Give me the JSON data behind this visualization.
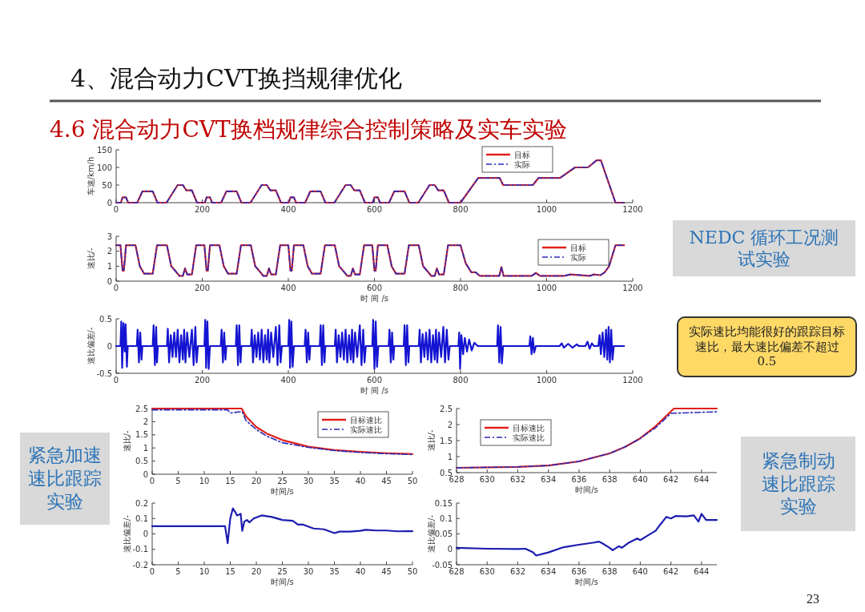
{
  "chart_data": [
    {
      "type": "other",
      "title": "4、混合动力CVT换挡规律优化",
      "subtitle": "4.6 混合动力CVT换档规律综合控制策略及实车实验",
      "annotations": [
        "NEDC 循环工况测试实验",
        "实际速比均能很好的跟踪目标速比，最大速比偏差不超过 0.5",
        "紧急加速速比跟踪实验",
        "紧急制动速比跟踪实验",
        "23"
      ]
    },
    {
      "type": "line",
      "ylabel": "车速/km/h",
      "xlim": [
        0,
        1200
      ],
      "xticks": [
        0,
        200,
        400,
        600,
        800,
        1000,
        1200
      ],
      "ylim": [
        0,
        150
      ],
      "yticks": [
        0,
        50,
        100,
        150
      ],
      "legend": "top right",
      "series": [
        {
          "name": "目标",
          "color": "#e0201c",
          "line_style": "solid",
          "x": [
            0,
            11,
            15,
            23,
            28,
            49,
            61,
            85,
            96,
            117,
            143,
            155,
            163,
            176,
            188,
            195,
            206,
            210,
            218,
            223,
            244,
            256,
            280,
            291,
            312,
            338,
            350,
            358,
            371,
            383,
            390,
            401,
            405,
            413,
            418,
            439,
            451,
            475,
            486,
            507,
            533,
            545,
            553,
            566,
            578,
            585,
            596,
            600,
            608,
            613,
            634,
            646,
            670,
            681,
            702,
            728,
            740,
            748,
            761,
            773,
            800,
            841,
            891,
            899,
            968,
            981,
            1031,
            1066,
            1096,
            1116,
            1126,
            1160,
            1180
          ],
          "values": [
            0,
            0,
            15,
            15,
            0,
            0,
            32,
            32,
            0,
            0,
            50,
            50,
            35,
            35,
            0,
            0,
            0,
            15,
            15,
            0,
            0,
            32,
            32,
            0,
            0,
            50,
            50,
            35,
            35,
            0,
            0,
            0,
            15,
            15,
            0,
            0,
            32,
            32,
            0,
            0,
            50,
            50,
            35,
            35,
            0,
            0,
            0,
            15,
            15,
            0,
            0,
            32,
            32,
            0,
            0,
            50,
            50,
            35,
            35,
            0,
            0,
            70,
            70,
            50,
            50,
            70,
            70,
            100,
            100,
            120,
            120,
            0,
            0
          ]
        },
        {
          "name": "实际",
          "color": "#2a2ab8",
          "line_style": "dashed",
          "x": [
            0,
            11,
            15,
            23,
            28,
            49,
            61,
            85,
            96,
            117,
            143,
            155,
            163,
            176,
            188,
            195,
            206,
            210,
            218,
            223,
            244,
            256,
            280,
            291,
            312,
            338,
            350,
            358,
            371,
            383,
            390,
            401,
            405,
            413,
            418,
            439,
            451,
            475,
            486,
            507,
            533,
            545,
            553,
            566,
            578,
            585,
            596,
            600,
            608,
            613,
            634,
            646,
            670,
            681,
            702,
            728,
            740,
            748,
            761,
            773,
            800,
            841,
            891,
            899,
            968,
            981,
            1031,
            1066,
            1096,
            1116,
            1126,
            1160,
            1180
          ],
          "values": [
            0,
            0,
            15,
            15,
            0,
            0,
            32,
            32,
            0,
            0,
            50,
            50,
            35,
            35,
            0,
            0,
            0,
            15,
            15,
            0,
            0,
            32,
            32,
            0,
            0,
            50,
            50,
            35,
            35,
            0,
            0,
            0,
            15,
            15,
            0,
            0,
            32,
            32,
            0,
            0,
            50,
            50,
            35,
            35,
            0,
            0,
            0,
            15,
            15,
            0,
            0,
            32,
            32,
            0,
            0,
            50,
            50,
            35,
            35,
            0,
            0,
            70,
            70,
            50,
            50,
            70,
            70,
            100,
            100,
            120,
            120,
            0,
            0
          ]
        }
      ]
    },
    {
      "type": "line",
      "xlabel": "时 间 /s",
      "ylabel": "速比/-",
      "xlim": [
        0,
        1200
      ],
      "xticks": [
        0,
        200,
        400,
        600,
        800,
        1000,
        1200
      ],
      "ylim": [
        0,
        3
      ],
      "yticks": [
        0,
        1,
        2,
        3
      ],
      "legend": "top right",
      "series": [
        {
          "name": "目标",
          "color": "#e0201c",
          "line_style": "solid",
          "x": [
            0,
            10,
            15,
            18,
            23,
            45,
            55,
            65,
            85,
            95,
            118,
            128,
            140,
            147,
            155,
            160,
            165,
            176,
            186,
            205,
            210,
            213,
            218,
            240,
            250,
            260,
            280,
            290,
            313,
            323,
            335,
            342,
            350,
            355,
            360,
            371,
            381,
            400,
            405,
            408,
            413,
            435,
            445,
            455,
            475,
            485,
            508,
            518,
            530,
            537,
            545,
            550,
            555,
            566,
            576,
            595,
            600,
            603,
            608,
            630,
            640,
            650,
            670,
            680,
            703,
            713,
            725,
            732,
            740,
            745,
            750,
            761,
            771,
            800,
            812,
            825,
            835,
            845,
            890,
            895,
            900,
            965,
            975,
            985,
            1040,
            1055,
            1080,
            1100,
            1110,
            1125,
            1135,
            1145,
            1160,
            1180
          ],
          "values": [
            2.4,
            2.4,
            0.7,
            0.7,
            2.4,
            2.4,
            1.0,
            0.5,
            0.5,
            2.4,
            2.4,
            1.0,
            0.6,
            0.35,
            0.35,
            0.85,
            0.45,
            0.45,
            2.4,
            2.4,
            0.7,
            0.7,
            2.4,
            2.4,
            1.0,
            0.5,
            0.5,
            2.4,
            2.4,
            1.0,
            0.6,
            0.35,
            0.35,
            0.85,
            0.45,
            0.45,
            2.4,
            2.4,
            0.7,
            0.7,
            2.4,
            2.4,
            1.0,
            0.5,
            0.5,
            2.4,
            2.4,
            1.0,
            0.6,
            0.35,
            0.35,
            0.85,
            0.45,
            0.45,
            2.4,
            2.4,
            0.7,
            0.7,
            2.4,
            2.4,
            1.0,
            0.5,
            0.5,
            2.4,
            2.4,
            1.0,
            0.6,
            0.35,
            0.35,
            0.85,
            0.45,
            0.45,
            2.4,
            2.4,
            1.2,
            0.6,
            0.6,
            0.35,
            0.35,
            0.95,
            0.35,
            0.35,
            0.55,
            0.35,
            0.35,
            0.45,
            0.4,
            0.35,
            0.45,
            0.4,
            0.6,
            1.0,
            2.4,
            2.4
          ]
        },
        {
          "name": "实际",
          "color": "#2a2ab8",
          "line_style": "dashed",
          "x": [
            0,
            10,
            15,
            18,
            23,
            45,
            55,
            65,
            85,
            95,
            118,
            128,
            140,
            147,
            155,
            160,
            165,
            176,
            186,
            205,
            210,
            213,
            218,
            240,
            250,
            260,
            280,
            290,
            313,
            323,
            335,
            342,
            350,
            355,
            360,
            371,
            381,
            400,
            405,
            408,
            413,
            435,
            445,
            455,
            475,
            485,
            508,
            518,
            530,
            537,
            545,
            550,
            555,
            566,
            576,
            595,
            600,
            603,
            608,
            630,
            640,
            650,
            670,
            680,
            703,
            713,
            725,
            732,
            740,
            745,
            750,
            761,
            771,
            800,
            812,
            825,
            835,
            845,
            890,
            895,
            900,
            965,
            975,
            985,
            1040,
            1055,
            1080,
            1100,
            1110,
            1125,
            1135,
            1145,
            1160,
            1180
          ],
          "values": [
            2.4,
            2.4,
            0.7,
            0.7,
            2.4,
            2.4,
            1.0,
            0.5,
            0.5,
            2.4,
            2.4,
            1.0,
            0.6,
            0.35,
            0.35,
            0.85,
            0.45,
            0.45,
            2.4,
            2.4,
            0.7,
            0.7,
            2.4,
            2.4,
            1.0,
            0.5,
            0.5,
            2.4,
            2.4,
            1.0,
            0.6,
            0.35,
            0.35,
            0.85,
            0.45,
            0.45,
            2.4,
            2.4,
            0.7,
            0.7,
            2.4,
            2.4,
            1.0,
            0.5,
            0.5,
            2.4,
            2.4,
            1.0,
            0.6,
            0.35,
            0.35,
            0.85,
            0.45,
            0.45,
            2.4,
            2.4,
            0.7,
            0.7,
            2.4,
            2.4,
            1.0,
            0.5,
            0.5,
            2.4,
            2.4,
            1.0,
            0.6,
            0.35,
            0.35,
            0.85,
            0.45,
            0.45,
            2.4,
            2.4,
            1.2,
            0.6,
            0.6,
            0.35,
            0.35,
            0.95,
            0.35,
            0.35,
            0.55,
            0.35,
            0.35,
            0.45,
            0.4,
            0.35,
            0.45,
            0.4,
            0.6,
            1.0,
            2.4,
            2.4
          ]
        }
      ]
    },
    {
      "type": "line",
      "xlabel": "时 间 /s",
      "ylabel": "速比偏差/-",
      "xlim": [
        0,
        1200
      ],
      "xticks": [
        0,
        200,
        400,
        600,
        800,
        1000,
        1200
      ],
      "ylim": [
        -0.5,
        0.5
      ],
      "yticks": [
        -0.5,
        0,
        0.5
      ],
      "series": [
        {
          "color": "#1414d2",
          "line_style": "solid",
          "x": [
            0,
            10,
            12,
            14,
            17,
            20,
            22,
            25,
            27,
            48,
            50,
            53,
            56,
            59,
            61,
            85,
            87,
            90,
            93,
            95,
            97,
            118,
            120,
            123,
            127,
            131,
            135,
            139,
            143,
            147,
            151,
            155,
            158,
            161,
            165,
            170,
            176,
            180,
            184,
            187,
            190,
            205,
            207,
            209,
            212,
            215,
            218,
            243,
            245,
            248,
            251,
            254,
            256,
            278,
            280,
            283,
            286,
            289,
            291,
            313,
            315,
            318,
            322,
            326,
            330,
            334,
            338,
            342,
            346,
            350,
            353,
            356,
            360,
            365,
            371,
            375,
            379,
            382,
            385,
            400,
            402,
            404,
            407,
            410,
            413,
            438,
            440,
            443,
            446,
            449,
            451,
            473,
            475,
            478,
            481,
            484,
            486,
            508,
            510,
            513,
            517,
            521,
            525,
            529,
            533,
            537,
            541,
            545,
            548,
            551,
            555,
            560,
            566,
            570,
            574,
            577,
            580,
            595,
            597,
            600,
            603,
            606,
            609,
            633,
            635,
            638,
            641,
            644,
            646,
            668,
            670,
            673,
            676,
            679,
            681,
            703,
            705,
            708,
            712,
            716,
            720,
            724,
            728,
            732,
            736,
            740,
            743,
            746,
            750,
            755,
            760,
            764,
            768,
            772,
            775,
            795,
            797,
            799,
            802,
            806,
            810,
            815,
            820,
            826,
            832,
            840,
            885,
            887,
            890,
            893,
            896,
            899,
            960,
            962,
            965,
            968,
            971,
            975,
            1030,
            1035,
            1040,
            1050,
            1060,
            1070,
            1075,
            1090,
            1095,
            1100,
            1105,
            1110,
            1120,
            1123,
            1126,
            1130,
            1134,
            1138,
            1141,
            1144,
            1147,
            1150,
            1153,
            1156,
            1180
          ],
          "values": [
            0,
            0,
            0.45,
            -0.4,
            0.42,
            -0.1,
            0.4,
            -0.38,
            0,
            0,
            0.3,
            -0.3,
            0.25,
            -0.25,
            0,
            0,
            0.38,
            -0.35,
            0.35,
            -0.3,
            0,
            0,
            0.32,
            -0.3,
            0.2,
            -0.2,
            0.25,
            -0.2,
            0.3,
            -0.3,
            0.2,
            -0.25,
            0.3,
            -0.3,
            0.25,
            -0.2,
            0.3,
            -0.35,
            0.35,
            -0.3,
            0,
            0,
            0.48,
            -0.4,
            0.45,
            -0.42,
            0,
            0,
            0.3,
            -0.3,
            0.25,
            -0.25,
            0,
            0,
            0.38,
            -0.35,
            0.38,
            -0.3,
            0,
            0,
            0.3,
            -0.3,
            0.2,
            -0.2,
            0.25,
            -0.25,
            0.3,
            -0.3,
            0.2,
            -0.25,
            0.3,
            -0.3,
            0.25,
            -0.2,
            0.35,
            -0.35,
            0.38,
            -0.3,
            0,
            0,
            0.48,
            -0.4,
            0.45,
            -0.38,
            0,
            0,
            0.3,
            -0.3,
            0.25,
            -0.25,
            0,
            0,
            0.38,
            -0.35,
            0.38,
            -0.3,
            0,
            0,
            0.3,
            -0.3,
            0.2,
            -0.2,
            0.25,
            -0.25,
            0.3,
            -0.3,
            0.2,
            -0.25,
            0.3,
            -0.3,
            0.25,
            -0.2,
            0.38,
            -0.35,
            0.3,
            -0.3,
            0,
            0,
            0.48,
            -0.42,
            0.45,
            -0.38,
            0,
            0,
            0.3,
            -0.3,
            0.25,
            -0.25,
            0,
            0,
            0.38,
            -0.35,
            0.38,
            -0.3,
            0,
            0,
            0.3,
            -0.3,
            0.22,
            -0.2,
            0.25,
            -0.25,
            0.3,
            -0.3,
            0.2,
            -0.25,
            0.3,
            -0.3,
            0.25,
            -0.2,
            0.35,
            -0.3,
            0.3,
            -0.25,
            0,
            0,
            0.25,
            -0.42,
            0.2,
            -0.15,
            0.15,
            -0.1,
            0.12,
            -0.08,
            0.06,
            0,
            0,
            0.38,
            -0.3,
            0.35,
            -0.32,
            0,
            0,
            0.18,
            -0.15,
            0.15,
            -0.12,
            0,
            0,
            0.05,
            -0.03,
            0.04,
            -0.03,
            0.03,
            0,
            0,
            0.08,
            -0.05,
            0.05,
            0,
            0,
            0.2,
            -0.15,
            0.25,
            -0.2,
            0.3,
            -0.25,
            0.35,
            -0.3,
            0.3,
            -0.25,
            0,
            0
          ]
        }
      ]
    },
    {
      "type": "line",
      "xlabel": "时间/s",
      "ylabel": "速比/-",
      "xlim": [
        0,
        50
      ],
      "xticks": [
        0,
        5,
        10,
        15,
        20,
        25,
        30,
        35,
        40,
        45,
        50
      ],
      "ylim": [
        0,
        2.5
      ],
      "yticks": [
        0,
        0.5,
        1,
        1.5,
        2,
        2.5
      ],
      "legend": "top right",
      "series": [
        {
          "name": "目标速比",
          "color": "#e0201c",
          "line_style": "solid",
          "x": [
            0,
            17.2,
            18,
            20,
            22,
            25,
            30,
            35,
            40,
            45,
            50
          ],
          "values": [
            2.5,
            2.5,
            2.2,
            1.8,
            1.55,
            1.3,
            1.05,
            0.92,
            0.85,
            0.8,
            0.77
          ]
        },
        {
          "name": "实际速比",
          "color": "#2a2ab8",
          "line_style": "dashed",
          "x": [
            0,
            14.5,
            15,
            17,
            17.3,
            18,
            20,
            22,
            25,
            30,
            35,
            40,
            45,
            50
          ],
          "values": [
            2.45,
            2.45,
            2.33,
            2.38,
            2.38,
            2.05,
            1.7,
            1.45,
            1.2,
            1.02,
            0.9,
            0.83,
            0.78,
            0.75
          ]
        }
      ]
    },
    {
      "type": "line",
      "xlabel": "时间/s",
      "ylabel": "速比偏差/-",
      "xlim": [
        0,
        50
      ],
      "xticks": [
        0,
        5,
        10,
        15,
        20,
        25,
        30,
        35,
        40,
        45,
        50
      ],
      "ylim": [
        -0.2,
        0.2
      ],
      "yticks": [
        -0.2,
        -0.1,
        0,
        0.1,
        0.2
      ],
      "series": [
        {
          "color": "#1c1cb0",
          "line_style": "solid",
          "x": [
            0,
            14,
            14.5,
            15,
            15.5,
            16,
            16.3,
            17,
            17.3,
            17.7,
            18.2,
            18.7,
            19.5,
            21,
            23,
            25,
            27,
            28,
            29,
            31,
            33,
            35,
            36,
            38,
            40,
            41,
            43,
            45,
            47,
            50
          ],
          "values": [
            0.05,
            0.05,
            -0.06,
            0.1,
            0.165,
            0.14,
            0.12,
            0.13,
            0.02,
            0.08,
            0.09,
            0.075,
            0.1,
            0.12,
            0.11,
            0.09,
            0.085,
            0.06,
            0.06,
            0.035,
            0.03,
            0.005,
            0.015,
            0.015,
            0.02,
            0.027,
            0.022,
            0.022,
            0.017,
            0.018
          ]
        }
      ]
    },
    {
      "type": "line",
      "xlabel": "时间/s",
      "ylabel": "速比/-",
      "xlim": [
        628,
        645
      ],
      "xticks": [
        628,
        630,
        632,
        634,
        636,
        638,
        640,
        642,
        644
      ],
      "ylim": [
        0.5,
        2.5
      ],
      "yticks": [
        0.5,
        1,
        1.5,
        2,
        2.5
      ],
      "legend": "top left",
      "series": [
        {
          "name": "目标速比",
          "color": "#e0201c",
          "line_style": "solid",
          "x": [
            628,
            632,
            634,
            636,
            638,
            639,
            640,
            641,
            642.2,
            645
          ],
          "values": [
            0.65,
            0.68,
            0.72,
            0.85,
            1.1,
            1.3,
            1.57,
            1.95,
            2.5,
            2.5
          ]
        },
        {
          "name": "实际速比",
          "color": "#2a2ab8",
          "line_style": "dashed",
          "x": [
            628,
            632,
            634,
            636,
            638,
            639,
            640,
            641,
            642,
            645
          ],
          "values": [
            0.65,
            0.68,
            0.72,
            0.85,
            1.1,
            1.3,
            1.57,
            1.9,
            2.35,
            2.4
          ]
        }
      ]
    },
    {
      "type": "line",
      "xlabel": "时间/s",
      "ylabel": "速比偏差/-",
      "xlim": [
        628,
        645
      ],
      "xticks": [
        628,
        630,
        632,
        634,
        636,
        638,
        640,
        642,
        644
      ],
      "ylim": [
        -0.05,
        0.15
      ],
      "yticks": [
        -0.05,
        0,
        0.05,
        0.1,
        0.15
      ],
      "series": [
        {
          "color": "#1c1cb0",
          "line_style": "solid",
          "x": [
            628,
            630,
            632,
            632.5,
            633,
            633.2,
            634,
            635,
            636,
            637,
            637.3,
            637.5,
            638,
            638.2,
            638.6,
            638.8,
            639.2,
            639.8,
            640,
            640.5,
            641,
            641.3,
            641.7,
            642,
            642.3,
            643,
            643.5,
            643.8,
            644,
            644.3,
            645
          ],
          "values": [
            0.005,
            0.002,
            0.001,
            0.002,
            -0.01,
            -0.02,
            -0.01,
            0.007,
            0.015,
            0.022,
            0.025,
            0.02,
            0.005,
            -0.003,
            0.01,
            0.005,
            0.02,
            0.035,
            0.03,
            0.045,
            0.06,
            0.08,
            0.105,
            0.1,
            0.108,
            0.107,
            0.11,
            0.09,
            0.115,
            0.095,
            0.095
          ]
        }
      ]
    }
  ]
}
